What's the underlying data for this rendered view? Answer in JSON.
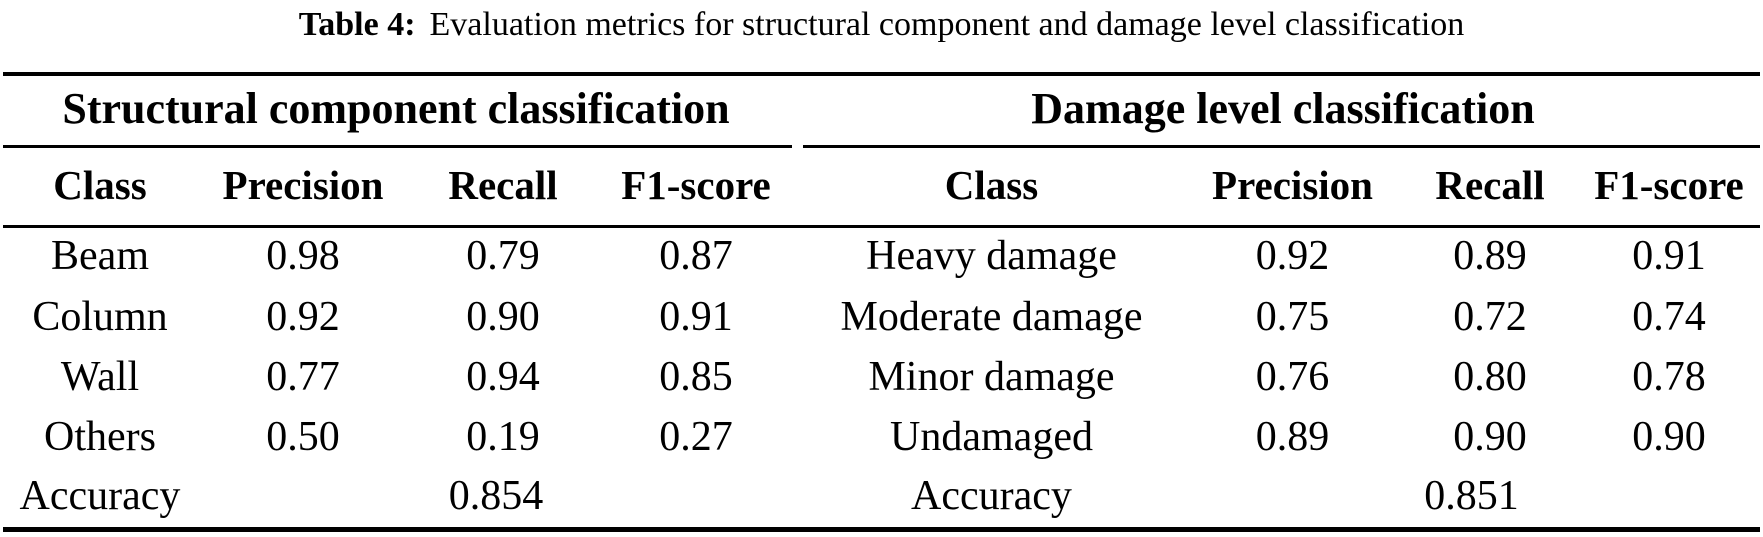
{
  "caption": {
    "label": "Table 4:",
    "text": "Evaluation metrics for structural component and damage level classification"
  },
  "table": {
    "sections": [
      {
        "header": "Structural component classification",
        "columns": [
          "Class",
          "Precision",
          "Recall",
          "F1-score"
        ],
        "rows": [
          [
            "Beam",
            "0.98",
            "0.79",
            "0.87"
          ],
          [
            "Column",
            "0.92",
            "0.90",
            "0.91"
          ],
          [
            "Wall",
            "0.77",
            "0.94",
            "0.85"
          ],
          [
            "Others",
            "0.50",
            "0.19",
            "0.27"
          ]
        ],
        "accuracy": {
          "label": "Accuracy",
          "value": "0.854"
        }
      },
      {
        "header": "Damage level classification",
        "columns": [
          "Class",
          "Precision",
          "Recall",
          "F1-score"
        ],
        "rows": [
          [
            "Heavy damage",
            "0.92",
            "0.89",
            "0.91"
          ],
          [
            "Moderate damage",
            "0.75",
            "0.72",
            "0.74"
          ],
          [
            "Minor damage",
            "0.76",
            "0.80",
            "0.78"
          ],
          [
            "Undamaged",
            "0.89",
            "0.90",
            "0.90"
          ]
        ],
        "accuracy": {
          "label": "Accuracy",
          "value": "0.851"
        }
      }
    ]
  }
}
